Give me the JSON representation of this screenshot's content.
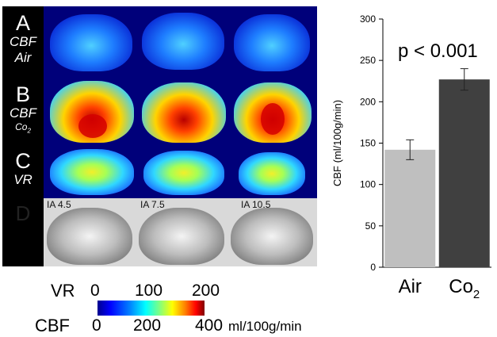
{
  "panel_labels": {
    "a": {
      "letter": "A",
      "line1": "CBF",
      "line2": "Air"
    },
    "b": {
      "letter": "B",
      "line1": "CBF",
      "line2_main": "Co",
      "line2_sub": "2"
    },
    "c": {
      "letter": "C",
      "line1": "VR"
    },
    "d": {
      "letter": "D"
    }
  },
  "slice_labels": [
    "IA 4.5",
    "IA 7.5",
    "IA 10.5"
  ],
  "colorbar": {
    "vr_label": "VR",
    "vr_ticks": [
      "0",
      "100",
      "200"
    ],
    "cbf_label": "CBF",
    "cbf_ticks": [
      "0",
      "200",
      "400"
    ],
    "unit": "ml/100g/min"
  },
  "chart_data": {
    "type": "bar",
    "categories": [
      "Air",
      "Co2"
    ],
    "category_label_parts": [
      {
        "main": "Air",
        "sub": ""
      },
      {
        "main": "Co",
        "sub": "2"
      }
    ],
    "values": [
      142,
      227
    ],
    "errors": [
      12,
      13
    ],
    "colors": [
      "#bfbfbf",
      "#404040"
    ],
    "ylabel": "CBF (ml/100g/min)",
    "ylim": [
      0,
      300
    ],
    "yticks": [
      0,
      50,
      100,
      150,
      200,
      250,
      300
    ],
    "annotation": "p < 0.001",
    "grid": false
  }
}
